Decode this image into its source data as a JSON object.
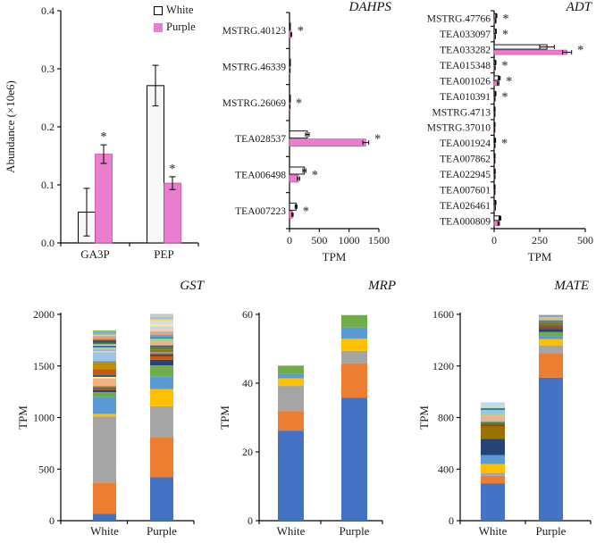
{
  "colors": {
    "white_bar": "#F8F8F8",
    "white_border": "#000000",
    "purple_bar": "#E97DCE",
    "purple_border": "#C9519E",
    "star": "#555555",
    "axis": "#000000"
  },
  "legend": {
    "items": [
      {
        "label": "White",
        "fill": "#ffffff",
        "border": "#000000"
      },
      {
        "label": "Purple",
        "fill": "#E97DCE",
        "border": "#E97DCE"
      }
    ]
  },
  "chart_data": [
    {
      "id": "abundance",
      "type": "grouped_bar",
      "title": "",
      "ylabel": "Abundance (×10e6)",
      "categories": [
        "GA3P",
        "PEP"
      ],
      "series": [
        {
          "name": "White",
          "values": [
            0.053,
            0.271
          ],
          "errors": [
            0.041,
            0.035
          ],
          "sig": [
            false,
            false
          ]
        },
        {
          "name": "Purple",
          "values": [
            0.153,
            0.103
          ],
          "errors": [
            0.016,
            0.011
          ],
          "sig": [
            true,
            true
          ]
        }
      ],
      "yticks": [
        0,
        0.1,
        0.2,
        0.3,
        0.4
      ],
      "ytick_labels": [
        "0.0",
        "0.1",
        "0.2",
        "0.3",
        "0.4"
      ],
      "ylim": [
        0,
        0.4
      ],
      "grid": false
    },
    {
      "id": "dahps",
      "type": "horizontal_paired_bar",
      "title": "DAHPS",
      "xlabel": "TPM",
      "genes": [
        "MSTRG.40123",
        "MSTRG.46339",
        "MSTRG.26069",
        "TEA028537",
        "TEA006498",
        "TEA007223"
      ],
      "white": [
        10,
        5,
        4,
        300,
        250,
        110
      ],
      "white_err": [
        4,
        2,
        2,
        30,
        25,
        15
      ],
      "purple": [
        30,
        5,
        5,
        1280,
        150,
        50
      ],
      "purple_err": [
        6,
        2,
        2,
        50,
        20,
        10
      ],
      "sig": [
        true,
        false,
        true,
        true,
        true,
        true
      ],
      "xticks": [
        0,
        500,
        1000,
        1500
      ],
      "xlim": [
        0,
        1500
      ]
    },
    {
      "id": "adt",
      "type": "horizontal_paired_bar",
      "title": "ADT",
      "xlabel": "TPM",
      "genes": [
        "MSTRG.47766",
        "TEA033097",
        "TEA033282",
        "TEA015348",
        "TEA001026",
        "TEA010391",
        "MSTRG.4713",
        "MSTRG.37010",
        "TEA001924",
        "TEA007862",
        "TEA022945",
        "TEA007601",
        "TEA026461",
        "TEA000809"
      ],
      "white": [
        12,
        10,
        290,
        8,
        28,
        8,
        4,
        3,
        6,
        4,
        5,
        4,
        8,
        32
      ],
      "white_err": [
        3,
        2,
        40,
        2,
        5,
        2,
        1,
        1,
        2,
        1,
        1,
        1,
        2,
        5
      ],
      "purple": [
        8,
        6,
        400,
        5,
        22,
        4,
        3,
        2,
        4,
        3,
        4,
        3,
        6,
        25
      ],
      "purple_err": [
        2,
        1,
        25,
        1,
        4,
        1,
        1,
        1,
        1,
        1,
        1,
        1,
        1,
        4
      ],
      "sig": [
        true,
        true,
        true,
        true,
        true,
        true,
        false,
        false,
        true,
        false,
        false,
        false,
        false,
        false
      ],
      "xticks": [
        0,
        250,
        500
      ],
      "xlim": [
        0,
        500
      ]
    },
    {
      "id": "gst",
      "type": "stacked_bar",
      "title": "GST",
      "ylabel": "TPM",
      "categories": [
        "White",
        "Purple"
      ],
      "yticks": [
        0,
        500,
        1000,
        1500,
        2000
      ],
      "ylim": [
        0,
        2000
      ],
      "totals": [
        1845,
        2005
      ],
      "stacks": [
        [
          [
            "#4472C4",
            65
          ],
          [
            "#ED7D31",
            305
          ],
          [
            "#A5A5A5",
            640
          ],
          [
            "#FFC000",
            25
          ],
          [
            "#5B9BD5",
            165
          ],
          [
            "#70AD47",
            45
          ],
          [
            "#264478",
            20
          ],
          [
            "#9E480E",
            15
          ],
          [
            "#636363",
            12
          ],
          [
            "#997300",
            12
          ],
          [
            "#F4B183",
            75
          ],
          [
            "#FFE699",
            15
          ],
          [
            "#255E91",
            18
          ],
          [
            "#C55A11",
            55
          ],
          [
            "#BF8F00",
            65
          ],
          [
            "#698ED0",
            15
          ],
          [
            "#9DC3E6",
            85
          ],
          [
            "#C6E0B4",
            12
          ],
          [
            "#B4A7D6",
            15
          ],
          [
            "#A9D18E",
            20
          ],
          [
            "#2E75B6",
            18
          ],
          [
            "#D6DCE5",
            12
          ],
          [
            "#548235",
            18
          ],
          [
            "#1F4E79",
            15
          ],
          [
            "#843C0C",
            12
          ],
          [
            "#F1975A",
            25
          ],
          [
            "#B7B7B7",
            16
          ],
          [
            "#FFCD33",
            10
          ],
          [
            "#7CAFDD",
            30
          ],
          [
            "#8CC168",
            10
          ]
        ],
        [
          [
            "#4472C4",
            420
          ],
          [
            "#ED7D31",
            385
          ],
          [
            "#A5A5A5",
            305
          ],
          [
            "#FFC000",
            165
          ],
          [
            "#5B9BD5",
            125
          ],
          [
            "#70AD47",
            105
          ],
          [
            "#264478",
            55
          ],
          [
            "#C55A11",
            30
          ],
          [
            "#843C0C",
            25
          ],
          [
            "#8497B0",
            20
          ],
          [
            "#997300",
            25
          ],
          [
            "#548235",
            25
          ],
          [
            "#335AA1",
            15
          ],
          [
            "#F4B183",
            35
          ],
          [
            "#A9D18E",
            20
          ],
          [
            "#8CC168",
            12
          ],
          [
            "#31869B",
            15
          ],
          [
            "#68A2D9",
            20
          ],
          [
            "#F1975A",
            15
          ],
          [
            "#B7B7B7",
            18
          ],
          [
            "#F8CBAD",
            25
          ],
          [
            "#BDD7EE",
            25
          ],
          [
            "#FFE699",
            20
          ],
          [
            "#D6DCE5",
            25
          ],
          [
            "#FFD966",
            20
          ],
          [
            "#9DC3E6",
            25
          ],
          [
            "#C9C9C9",
            30
          ]
        ]
      ]
    },
    {
      "id": "mrp",
      "type": "stacked_bar",
      "title": "MRP",
      "ylabel": "TPM",
      "categories": [
        "White",
        "Purple"
      ],
      "yticks": [
        0,
        20,
        40,
        60
      ],
      "ylim": [
        0,
        60
      ],
      "totals": [
        45.1,
        59.8
      ],
      "stacks": [
        [
          [
            "#4472C4",
            26.2
          ],
          [
            "#ED7D31",
            5.7
          ],
          [
            "#A5A5A5",
            7.3
          ],
          [
            "#FFC000",
            2.2
          ],
          [
            "#5B9BD5",
            1.3
          ],
          [
            "#70AD47",
            2.4
          ]
        ],
        [
          [
            "#4472C4",
            35.8
          ],
          [
            "#ED7D31",
            10
          ],
          [
            "#A5A5A5",
            3.6
          ],
          [
            "#FFC000",
            3.5
          ],
          [
            "#5B9BD5",
            3.3
          ],
          [
            "#70AD47",
            3.6
          ]
        ]
      ]
    },
    {
      "id": "mate",
      "type": "stacked_bar",
      "title": "MATE",
      "ylabel": "TPM",
      "categories": [
        "White",
        "Purple"
      ],
      "yticks": [
        0,
        400,
        800,
        1200,
        1600
      ],
      "ylim": [
        0,
        1600
      ],
      "totals": [
        918,
        1600
      ],
      "stacks": [
        [
          [
            "#4472C4",
            290
          ],
          [
            "#ED7D31",
            57
          ],
          [
            "#A5A5A5",
            23
          ],
          [
            "#FFC000",
            69
          ],
          [
            "#5B9BD5",
            70
          ],
          [
            "#264478",
            127
          ],
          [
            "#997300",
            92
          ],
          [
            "#9E480E",
            20
          ],
          [
            "#548235",
            18
          ],
          [
            "#B7B7B7",
            15
          ],
          [
            "#F4B183",
            35
          ],
          [
            "#A9D18E",
            12
          ],
          [
            "#9DC3E6",
            30
          ],
          [
            "#31869B",
            15
          ],
          [
            "#C6E0B4",
            15
          ],
          [
            "#BDD7EE",
            30
          ]
        ],
        [
          [
            "#4472C4",
            1110
          ],
          [
            "#ED7D31",
            185
          ],
          [
            "#A5A5A5",
            65
          ],
          [
            "#FFC000",
            48
          ],
          [
            "#5B9BD5",
            25
          ],
          [
            "#70AD47",
            30
          ],
          [
            "#264478",
            25
          ],
          [
            "#9E480E",
            18
          ],
          [
            "#636363",
            15
          ],
          [
            "#997300",
            18
          ],
          [
            "#31869B",
            15
          ],
          [
            "#F4B183",
            15
          ],
          [
            "#A9D18E",
            12
          ],
          [
            "#8497B0",
            12
          ],
          [
            "#D6DCE5",
            7
          ]
        ]
      ]
    }
  ]
}
